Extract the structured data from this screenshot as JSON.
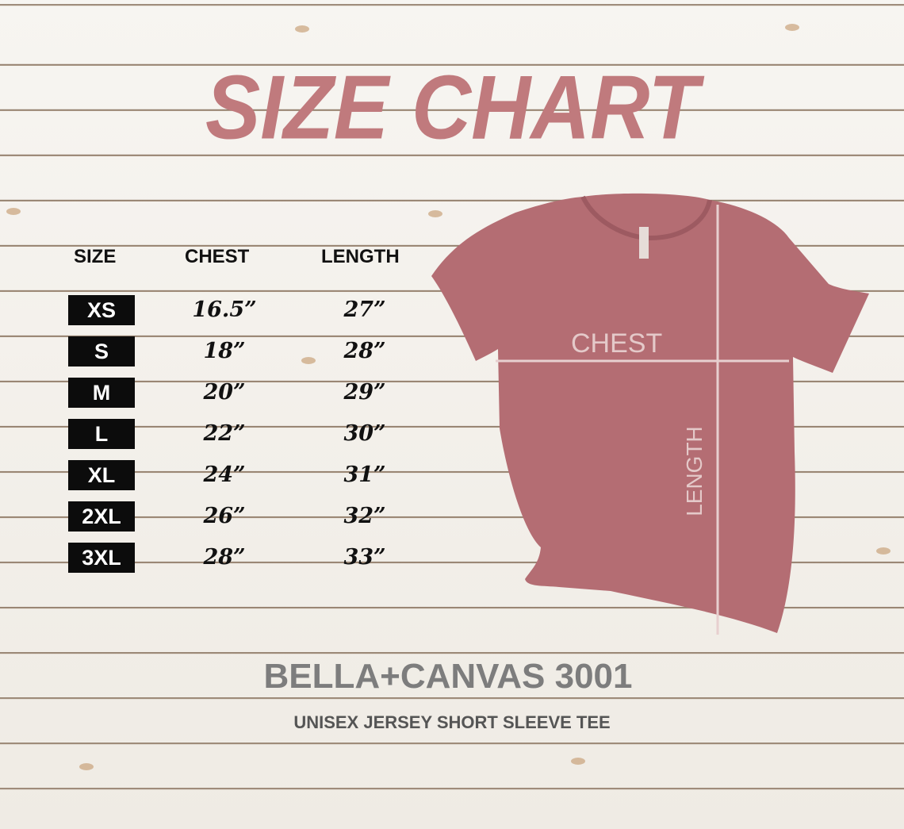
{
  "title": "SIZE CHART",
  "headers": {
    "size": "SIZE",
    "chest": "CHEST",
    "length": "LENGTH"
  },
  "rows": [
    {
      "size": "XS",
      "chest": "16.5”",
      "length": "27”"
    },
    {
      "size": "S",
      "chest": "18”",
      "length": "28”"
    },
    {
      "size": "M",
      "chest": "20”",
      "length": "29”"
    },
    {
      "size": "L",
      "chest": "22”",
      "length": "30”"
    },
    {
      "size": "XL",
      "chest": "24”",
      "length": "31”"
    },
    {
      "size": "2XL",
      "chest": "26”",
      "length": "32”"
    },
    {
      "size": "3XL",
      "chest": "28”",
      "length": "33”"
    }
  ],
  "diagram": {
    "chest_label": "CHEST",
    "length_label": "LENGTH",
    "shirt_color": "#b46d73"
  },
  "brand": "BELLA+CANVAS 3001",
  "subtitle": "UNISEX JERSEY SHORT SLEEVE TEE",
  "colors": {
    "title": "#c07a7d",
    "badge": "#0c0c0c",
    "brand": "#7d7d7d"
  }
}
